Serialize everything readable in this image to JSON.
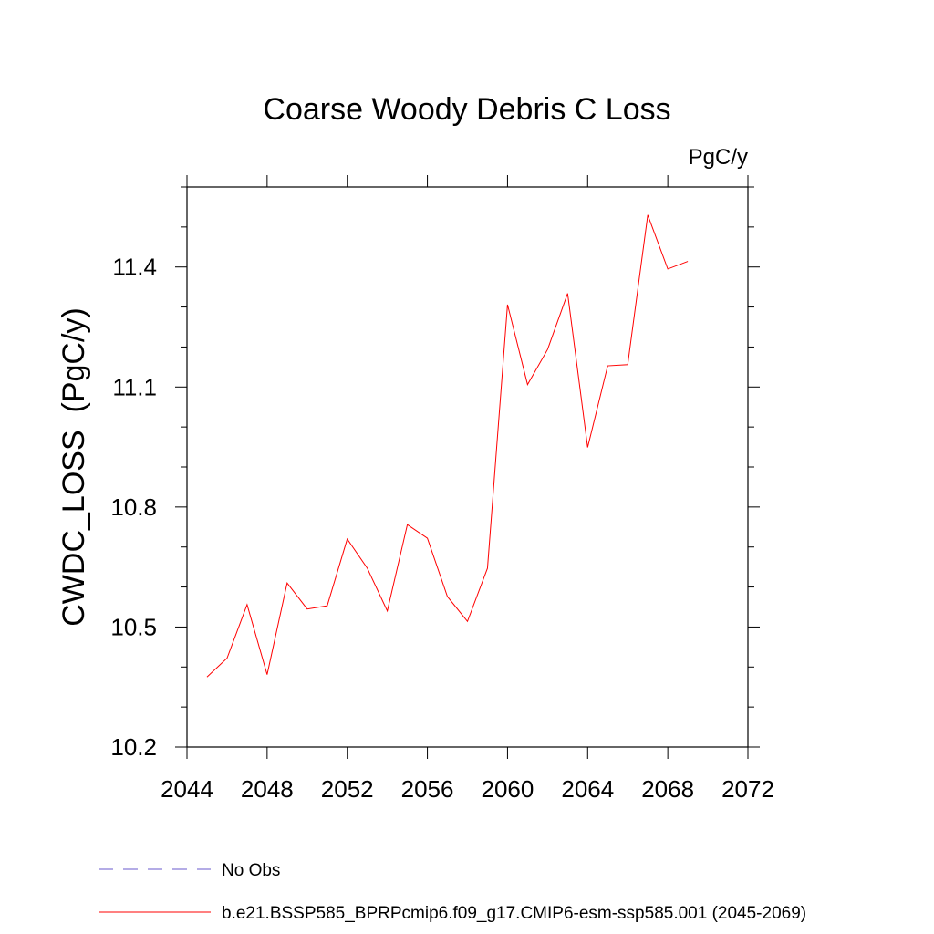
{
  "chart_data": {
    "type": "line",
    "title": "Coarse Woody Debris C Loss",
    "units": "PgC/y",
    "ylabel": "CWDC_LOSS  (PgC/y)",
    "xlabel": "",
    "xlim": [
      2044,
      2072
    ],
    "ylim": [
      10.2,
      11.6
    ],
    "xticks": [
      2044,
      2048,
      2052,
      2056,
      2060,
      2064,
      2068,
      2072
    ],
    "yticks": [
      10.2,
      10.5,
      10.8,
      11.1,
      11.4
    ],
    "yticks_labels": [
      "10.2",
      "10.5",
      "10.8",
      "11.1",
      "11.4"
    ],
    "grid": false,
    "legend_placement": "bottom-left",
    "series": [
      {
        "name": "b.e21.BSSP585_BPRPcmip6.f09_g17.CMIP6-esm-ssp585.001 (2045-2069)",
        "color": "#ff0000",
        "x": [
          2045,
          2046,
          2047,
          2048,
          2049,
          2050,
          2051,
          2052,
          2053,
          2054,
          2055,
          2056,
          2057,
          2058,
          2059,
          2060,
          2061,
          2062,
          2063,
          2064,
          2065,
          2066,
          2067,
          2068,
          2069
        ],
        "y": [
          10.375,
          10.422,
          10.556,
          10.381,
          10.61,
          10.545,
          10.553,
          10.72,
          10.647,
          10.54,
          10.756,
          10.722,
          10.576,
          10.514,
          10.647,
          11.306,
          11.106,
          11.194,
          11.334,
          10.949,
          11.153,
          11.156,
          11.53,
          11.395,
          11.414
        ]
      }
    ],
    "legend": [
      {
        "label": "No Obs",
        "color": "#6a5acd",
        "style": "dashed"
      },
      {
        "label": "b.e21.BSSP585_BPRPcmip6.f09_g17.CMIP6-esm-ssp585.001 (2045-2069)",
        "color": "#ff0000",
        "style": "solid"
      }
    ]
  }
}
